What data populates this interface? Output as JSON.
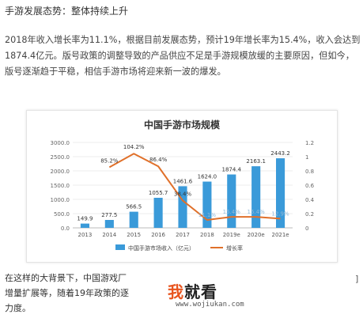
{
  "article": {
    "heading": "手游发展态势：整体持续上升",
    "paragraph": [
      "2018年收入增长率为11.1%，根据目前发展态势，预计19年增长率为15.4%，收入会达到",
      "1874.4亿元。版号政策的调整导致的产品供应不足是手游规模放缓的主要原因，但如今，",
      "版号逐渐趋于平稳，相信手游市场将迎来新一波的爆发。"
    ],
    "bottom_lines": [
      "在这样的大背景下，中国游戏厂",
      "增量扩展等，随着19年政策的逐",
      "力度。"
    ],
    "bracket": "]"
  },
  "watermark": {
    "part1": "我",
    "part2": "就看",
    "url": "www.wojiukan.com"
  },
  "chart_data": {
    "type": "bar",
    "title": "中国手游市场规模",
    "categories": [
      "2013",
      "2014",
      "2015",
      "2016",
      "2017",
      "2018",
      "2019e",
      "2020e",
      "2021e"
    ],
    "series": [
      {
        "name": "中国手游市场收入（亿元）",
        "type": "bar",
        "axis": "left",
        "color": "#3a9ad9",
        "values": [
          149.9,
          277.5,
          566.5,
          1055.7,
          1461.6,
          1624.0,
          1874.4,
          2163.1,
          2443.2
        ],
        "labels": [
          "149.9",
          "277.5",
          "566.5",
          "1055.7",
          "1461.6",
          "1624.0",
          "1874.4",
          "2163.1",
          "2443.2"
        ]
      },
      {
        "name": "增长率",
        "type": "line",
        "axis": "right",
        "color": "#e0702a",
        "values": [
          null,
          0.852,
          1.042,
          0.864,
          0.384,
          0.111,
          0.154,
          0.154,
          0.129
        ],
        "labels": [
          "",
          "85.2%",
          "104.2%",
          "86.4%",
          "38.4%",
          "11.1%",
          "15.4%",
          "15.4%",
          "12.9%"
        ]
      }
    ],
    "y_left": {
      "min": 0,
      "max": 3000,
      "ticks": [
        "0.0",
        "500.0",
        "1000.0",
        "1500.0",
        "2000.0",
        "2500.0",
        "3000.0"
      ]
    },
    "y_right": {
      "min": 0,
      "max": 1.2,
      "ticks": [
        "0",
        "0.2",
        "0.4",
        "0.6",
        "0.8",
        "1",
        "1.2"
      ]
    },
    "legend_position": "bottom"
  }
}
